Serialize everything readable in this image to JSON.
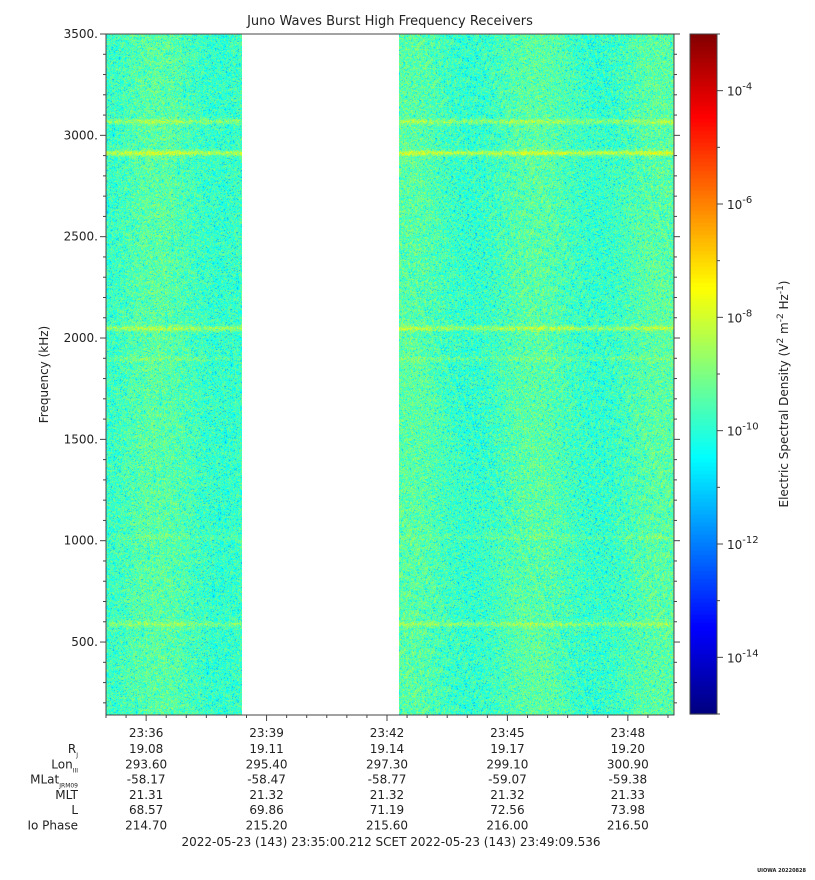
{
  "chart_data": {
    "type": "heatmap",
    "title": "Juno Waves Burst High Frequency Receivers",
    "ylabel": "Frequency (kHz)",
    "ylim": [
      140,
      3500
    ],
    "y_ticks": [
      {
        "value": 500,
        "label": "500."
      },
      {
        "value": 1000,
        "label": "1000."
      },
      {
        "value": 1500,
        "label": "1500."
      },
      {
        "value": 2000,
        "label": "2000."
      },
      {
        "value": 2500,
        "label": "2500."
      },
      {
        "value": 3000,
        "label": "3000."
      },
      {
        "value": 3500,
        "label": "3500."
      }
    ],
    "x_range_minutes": [
      35.0,
      49.15
    ],
    "x_ticks": [
      {
        "minute": 36,
        "label": "23:36"
      },
      {
        "minute": 39,
        "label": "23:39"
      },
      {
        "minute": 42,
        "label": "23:42"
      },
      {
        "minute": 45,
        "label": "23:45"
      },
      {
        "minute": 48,
        "label": "23:48"
      }
    ],
    "data_segments_minutes": [
      [
        35.0,
        38.4
      ],
      [
        42.3,
        49.15
      ]
    ],
    "bands_khz": [
      {
        "freq": 3070,
        "strength": 0.6
      },
      {
        "freq": 2915,
        "strength": 0.95
      },
      {
        "freq": 2050,
        "strength": 0.7
      },
      {
        "freq": 1900,
        "strength": 0.25
      },
      {
        "freq": 1020,
        "strength": 0.2
      },
      {
        "freq": 590,
        "strength": 0.5
      }
    ],
    "colorbar": {
      "label": "Electric Spectral Density (V² m⁻² Hz⁻¹)",
      "label_base": "Electric Spectral Density (V",
      "label_sup1": "2",
      "label_mid": " m",
      "label_sup2": "-2",
      "label_mid2": " Hz",
      "label_sup3": "-1",
      "label_end": ")",
      "log_min": -15.0,
      "log_max": -3.0,
      "ticks": [
        {
          "exp": -4,
          "base": "10",
          "sup": "-4"
        },
        {
          "exp": -6,
          "base": "10",
          "sup": "-6"
        },
        {
          "exp": -8,
          "base": "10",
          "sup": "-8"
        },
        {
          "exp": -10,
          "base": "10",
          "sup": "-10"
        },
        {
          "exp": -12,
          "base": "10",
          "sup": "-12"
        },
        {
          "exp": -14,
          "base": "10",
          "sup": "-14"
        }
      ]
    },
    "ephemeris": {
      "rows": [
        {
          "label": "R",
          "sub": "J",
          "values": [
            "19.08",
            "19.11",
            "19.14",
            "19.17",
            "19.20"
          ]
        },
        {
          "label": "Lon",
          "sub": "III",
          "values": [
            "293.60",
            "295.40",
            "297.30",
            "299.10",
            "300.90"
          ]
        },
        {
          "label": "MLat",
          "sub": "JRM09",
          "values": [
            "-58.17",
            "-58.47",
            "-58.77",
            "-59.07",
            "-59.38"
          ]
        },
        {
          "label": "MLT",
          "sub": "",
          "values": [
            "21.31",
            "21.32",
            "21.32",
            "21.32",
            "21.33"
          ]
        },
        {
          "label": "L",
          "sub": "",
          "values": [
            "68.57",
            "69.86",
            "71.19",
            "72.56",
            "73.98"
          ]
        },
        {
          "label": "Io Phase",
          "sub": "",
          "values": [
            "214.70",
            "215.20",
            "215.60",
            "216.00",
            "216.50"
          ]
        }
      ]
    },
    "time_range_text": "2022-05-23 (143) 23:35:00.212    SCET    2022-05-23 (143) 23:49:09.536",
    "footer": "UIOWA 20220828"
  }
}
